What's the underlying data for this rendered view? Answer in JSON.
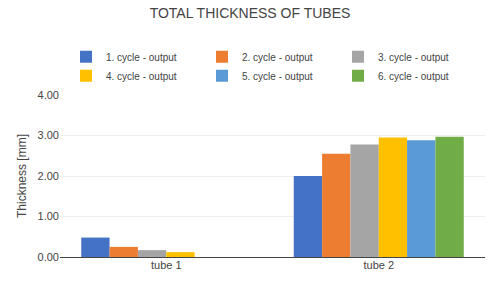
{
  "chart_data": {
    "type": "bar",
    "title": "TOTAL THICKNESS OF TUBES",
    "ylabel": "Thickness [mm]",
    "categories": [
      "tube 1",
      "tube 2"
    ],
    "series": [
      {
        "name": "1. cycle - output",
        "color": "#4472C4",
        "values": [
          0.48,
          2.0
        ]
      },
      {
        "name": "2. cycle - output",
        "color": "#ED7D31",
        "values": [
          0.25,
          2.55
        ]
      },
      {
        "name": "3. cycle - output",
        "color": "#A5A5A5",
        "values": [
          0.17,
          2.78
        ]
      },
      {
        "name": "4. cycle - output",
        "color": "#FFC000",
        "values": [
          0.12,
          2.95
        ]
      },
      {
        "name": "5. cycle - output",
        "color": "#5B9BD5",
        "values": [
          0.0,
          2.88
        ]
      },
      {
        "name": "6. cycle - output",
        "color": "#70AD47",
        "values": [
          0.0,
          2.97
        ]
      }
    ],
    "ylim": [
      0,
      4.0
    ],
    "yticks": [
      {
        "value": 0.0,
        "label": "0.00"
      },
      {
        "value": 1.0,
        "label": "1.00"
      },
      {
        "value": 2.0,
        "label": "2.00"
      },
      {
        "value": 3.0,
        "label": "3.00"
      },
      {
        "value": 4.0,
        "label": "4.00"
      }
    ],
    "grid": true,
    "legend": "top"
  }
}
